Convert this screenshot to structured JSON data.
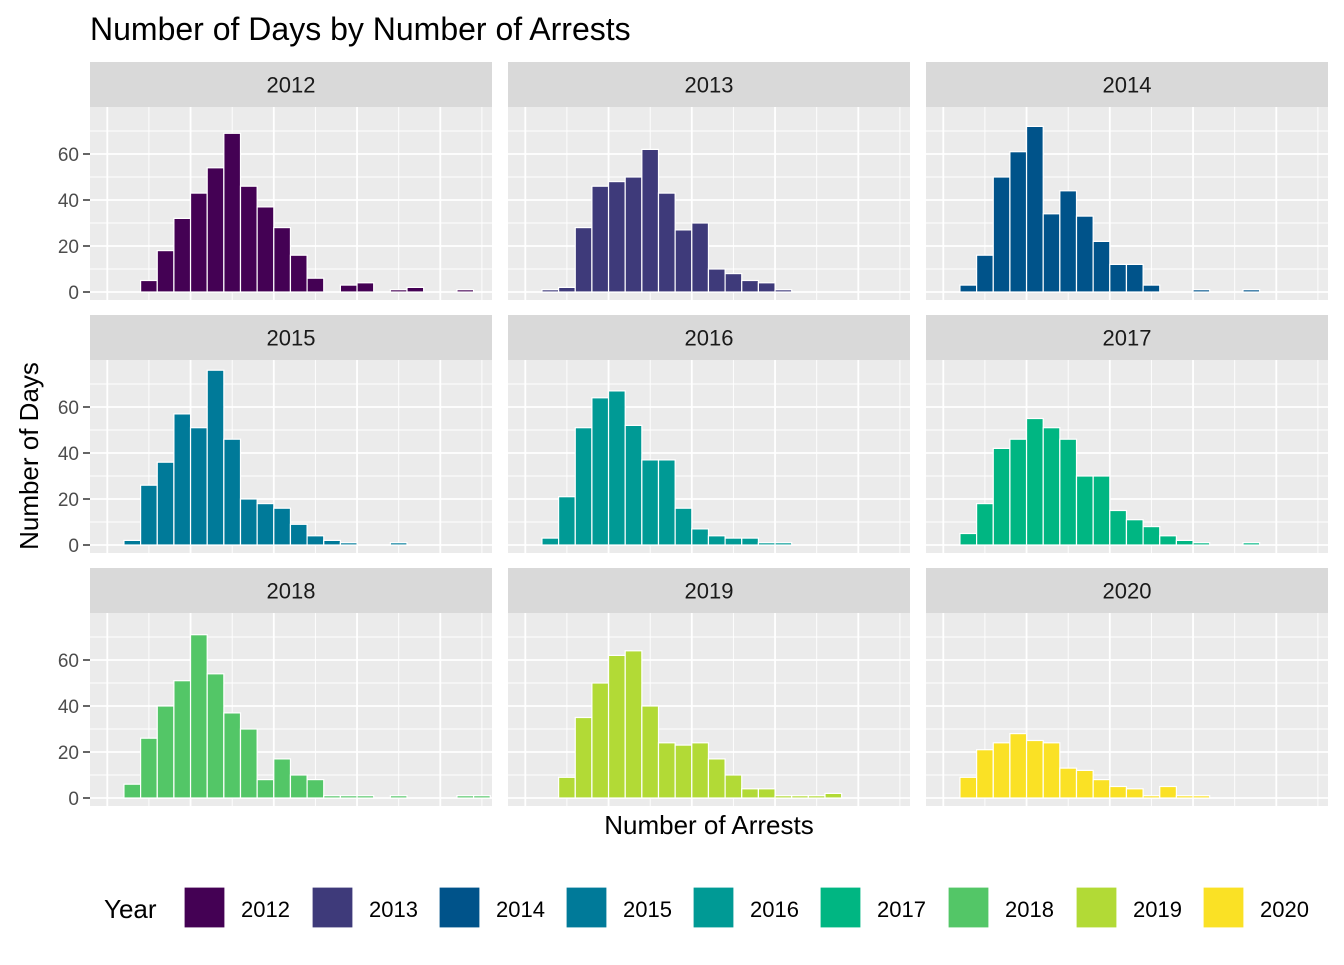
{
  "chart_data": {
    "type": "bar",
    "title": "Number of Days by Number of Arrests",
    "xlabel": "Number of Arrests",
    "ylabel": "Number of Days",
    "y_ticks": [
      "0",
      "20",
      "40",
      "60"
    ],
    "ylim": [
      0,
      76
    ],
    "x_range": [
      0,
      23
    ],
    "facet_layout": "3x3",
    "grid": true,
    "legend": {
      "title": "Year",
      "position": "bottom",
      "entries": [
        "2012",
        "2013",
        "2014",
        "2015",
        "2016",
        "2017",
        "2018",
        "2019",
        "2020"
      ]
    },
    "bar_edge_color": "#ffffff",
    "panel_background": "#ebebeb",
    "strip_background": "#d9d9d9",
    "panels": [
      {
        "year": "2012",
        "color": "#440154",
        "start_bin": 2,
        "values": [
          5,
          18,
          32,
          43,
          54,
          69,
          46,
          37,
          28,
          16,
          6,
          0,
          3,
          4,
          0,
          1,
          2,
          0,
          0,
          1
        ]
      },
      {
        "year": "2013",
        "color": "#3E3A7A",
        "start_bin": 1,
        "values": [
          1,
          2,
          28,
          46,
          48,
          50,
          62,
          43,
          27,
          30,
          10,
          8,
          5,
          4,
          1
        ]
      },
      {
        "year": "2014",
        "color": "#00538A",
        "start_bin": 1,
        "values": [
          3,
          16,
          50,
          61,
          72,
          34,
          44,
          33,
          22,
          12,
          12,
          3,
          0,
          0,
          1,
          0,
          0,
          1
        ]
      },
      {
        "year": "2015",
        "color": "#007A99",
        "start_bin": 1,
        "values": [
          2,
          26,
          36,
          57,
          51,
          76,
          46,
          20,
          18,
          16,
          9,
          4,
          2,
          1,
          0,
          0,
          1
        ]
      },
      {
        "year": "2016",
        "color": "#009A95",
        "start_bin": 1,
        "values": [
          3,
          21,
          51,
          64,
          67,
          52,
          37,
          37,
          16,
          7,
          4,
          3,
          3,
          1,
          1
        ]
      },
      {
        "year": "2017",
        "color": "#00B682",
        "start_bin": 1,
        "values": [
          5,
          18,
          42,
          46,
          55,
          51,
          46,
          30,
          30,
          15,
          11,
          8,
          4,
          2,
          1,
          0,
          0,
          1
        ]
      },
      {
        "year": "2018",
        "color": "#53C667",
        "start_bin": 1,
        "values": [
          6,
          26,
          40,
          51,
          71,
          54,
          37,
          30,
          8,
          17,
          10,
          8,
          1,
          1,
          1,
          0,
          1,
          0,
          0,
          0,
          1,
          1
        ]
      },
      {
        "year": "2019",
        "color": "#B2DA36",
        "start_bin": 2,
        "values": [
          9,
          35,
          50,
          62,
          64,
          40,
          24,
          23,
          24,
          17,
          10,
          4,
          4,
          1,
          1,
          1,
          2
        ]
      },
      {
        "year": "2020",
        "color": "#FAE125",
        "start_bin": 1,
        "values": [
          9,
          21,
          24,
          28,
          25,
          24,
          13,
          12,
          8,
          5,
          4,
          1,
          5,
          1,
          1
        ]
      }
    ]
  }
}
